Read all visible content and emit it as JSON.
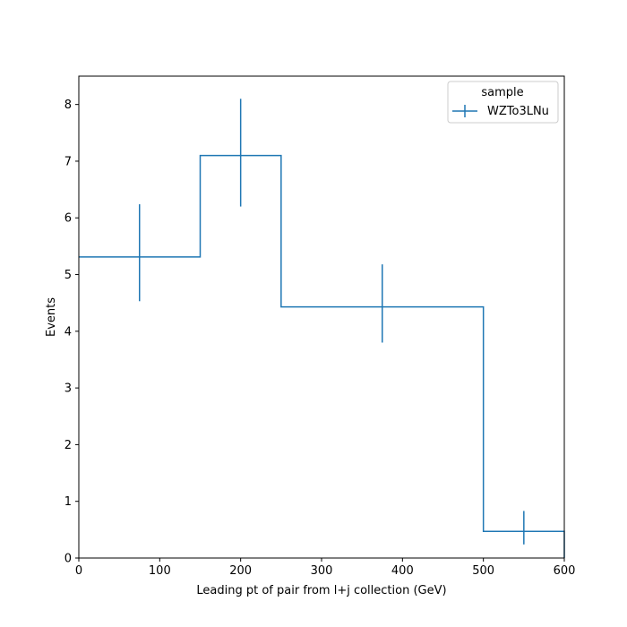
{
  "chart_data": {
    "type": "histogram-step",
    "xlabel": "Leading pt of pair from l+j collection (GeV)",
    "ylabel": "Events",
    "xlim": [
      0,
      600
    ],
    "ylim": [
      0,
      8.5
    ],
    "xticks": [
      0,
      100,
      200,
      300,
      400,
      500,
      600
    ],
    "yticks": [
      0,
      1,
      2,
      3,
      4,
      5,
      6,
      7,
      8
    ],
    "grid": false,
    "legend": {
      "title": "sample",
      "placement": "top-right"
    },
    "series": [
      {
        "name": "WZTo3LNu",
        "color": "#1f77b4",
        "bins": [
          {
            "low": 0,
            "high": 150,
            "center": 75,
            "value": 5.31,
            "err_low": 4.53,
            "err_high": 6.24
          },
          {
            "low": 150,
            "high": 250,
            "center": 200,
            "value": 7.1,
            "err_low": 6.2,
            "err_high": 8.1
          },
          {
            "low": 250,
            "high": 500,
            "center": 375,
            "value": 4.43,
            "err_low": 3.8,
            "err_high": 5.18
          },
          {
            "low": 500,
            "high": 600,
            "center": 550,
            "value": 0.47,
            "err_low": 0.24,
            "err_high": 0.83
          }
        ]
      }
    ]
  }
}
